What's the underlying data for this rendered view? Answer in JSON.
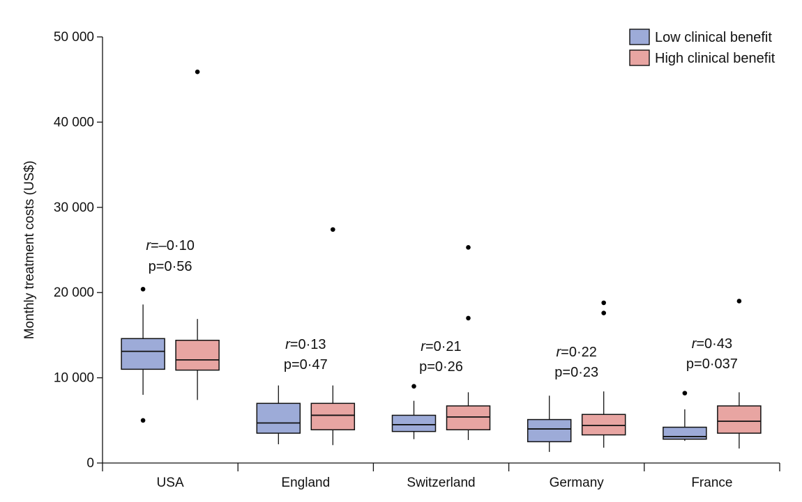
{
  "chart_data": {
    "type": "boxplot",
    "ylabel": "Monthly treatment costs (US$)",
    "ylim": [
      0,
      50000
    ],
    "yticks": [
      0,
      10000,
      20000,
      30000,
      40000,
      50000
    ],
    "ytick_labels": [
      "0",
      "10 000",
      "20 000",
      "30 000",
      "40 000",
      "50 000"
    ],
    "categories": [
      "USA",
      "England",
      "Switzerland",
      "Germany",
      "France"
    ],
    "legend_position": "top-right",
    "grid": false,
    "series": [
      {
        "name": "Low clinical benefit",
        "color": "#9dabd8",
        "boxes": [
          {
            "whisker_low": 8000,
            "q1": 11000,
            "median": 13100,
            "q3": 14600,
            "whisker_high": 18600,
            "outliers": [
              5000,
              20400
            ]
          },
          {
            "whisker_low": 2200,
            "q1": 3500,
            "median": 4700,
            "q3": 7000,
            "whisker_high": 9100,
            "outliers": []
          },
          {
            "whisker_low": 2800,
            "q1": 3700,
            "median": 4500,
            "q3": 5600,
            "whisker_high": 7300,
            "outliers": [
              9000
            ]
          },
          {
            "whisker_low": 1300,
            "q1": 2500,
            "median": 4000,
            "q3": 5100,
            "whisker_high": 7900,
            "outliers": []
          },
          {
            "whisker_low": 2600,
            "q1": 2800,
            "median": 3100,
            "q3": 4200,
            "whisker_high": 6300,
            "outliers": [
              8200
            ]
          }
        ]
      },
      {
        "name": "High clinical benefit",
        "color": "#e8a5a2",
        "boxes": [
          {
            "whisker_low": 7400,
            "q1": 10900,
            "median": 12100,
            "q3": 14400,
            "whisker_high": 16900,
            "outliers": [
              45900
            ]
          },
          {
            "whisker_low": 2100,
            "q1": 3900,
            "median": 5600,
            "q3": 7000,
            "whisker_high": 9100,
            "outliers": [
              27400
            ]
          },
          {
            "whisker_low": 2700,
            "q1": 3900,
            "median": 5400,
            "q3": 6700,
            "whisker_high": 8300,
            "outliers": [
              17000,
              25300
            ]
          },
          {
            "whisker_low": 1800,
            "q1": 3300,
            "median": 4400,
            "q3": 5700,
            "whisker_high": 8400,
            "outliers": [
              17600,
              18800
            ]
          },
          {
            "whisker_low": 1700,
            "q1": 3500,
            "median": 4900,
            "q3": 6700,
            "whisker_high": 8300,
            "outliers": [
              19000
            ]
          }
        ]
      }
    ],
    "annotations": [
      {
        "category": "USA",
        "r_label": "r",
        "r_value": "=–0·10",
        "p_text": "p=0·56"
      },
      {
        "category": "England",
        "r_label": "r",
        "r_value": "=0·13",
        "p_text": "p=0·47"
      },
      {
        "category": "Switzerland",
        "r_label": "r",
        "r_value": "=0·21",
        "p_text": "p=0·26"
      },
      {
        "category": "Germany",
        "r_label": "r",
        "r_value": "=0·22",
        "p_text": "p=0·23"
      },
      {
        "category": "France",
        "r_label": "r",
        "r_value": "=0·43",
        "p_text": "p=0·037"
      }
    ]
  }
}
